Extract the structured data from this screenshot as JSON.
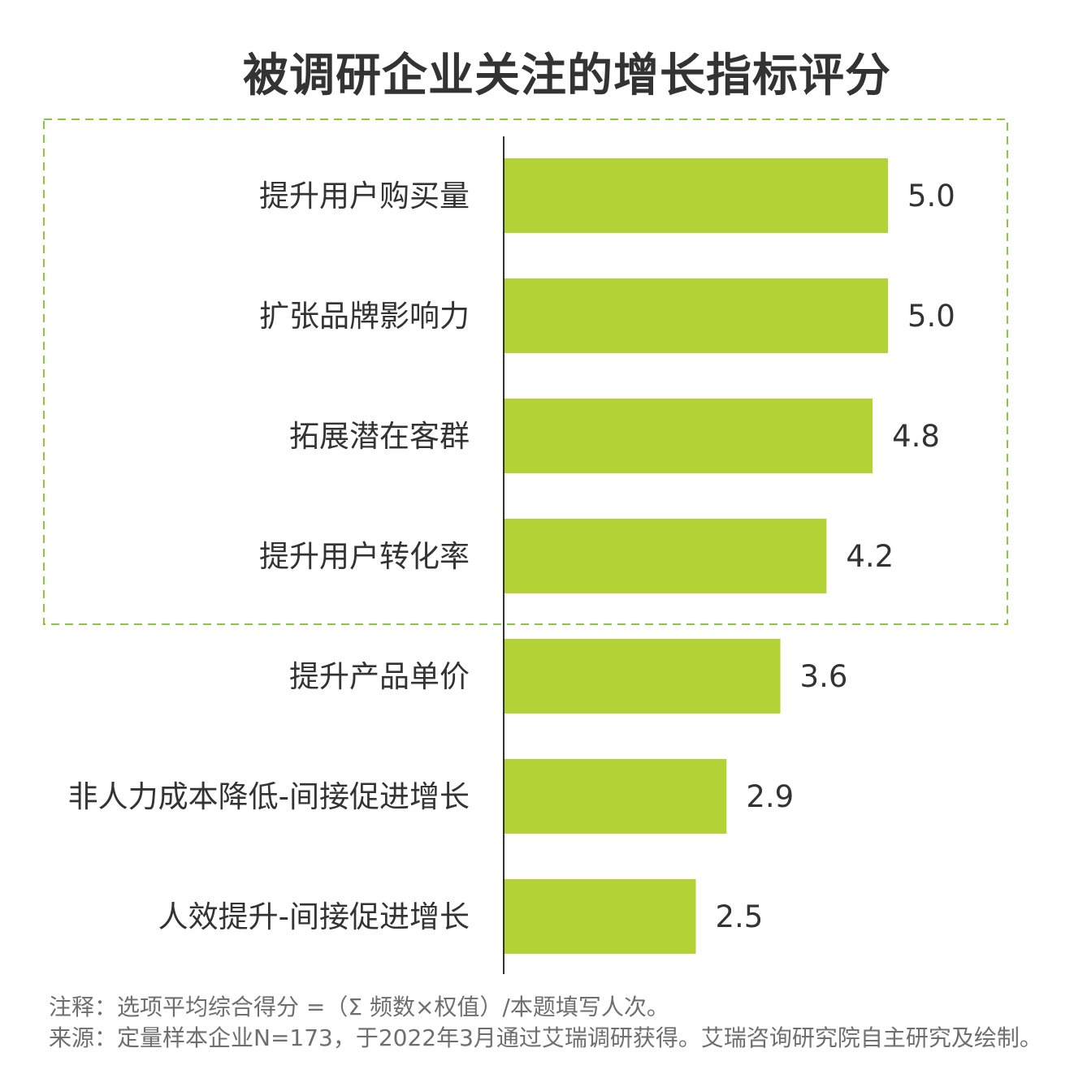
{
  "chart_data": {
    "type": "bar",
    "orientation": "horizontal",
    "title": "被调研企业关注的增长指标评分",
    "categories": [
      "提升用户购买量",
      "扩张品牌影响力",
      "拓展潜在客群",
      "提升用户转化率",
      "提升产品单价",
      "非人力成本降低-间接促进增长",
      "人效提升-间接促进增长"
    ],
    "values": [
      5.0,
      5.0,
      4.8,
      4.2,
      3.6,
      2.9,
      2.5
    ],
    "value_labels": [
      "5.0",
      "5.0",
      "4.8",
      "4.2",
      "3.6",
      "2.9",
      "2.5"
    ],
    "highlighted_group": [
      "提升用户购买量",
      "扩张品牌影响力",
      "拓展潜在客群",
      "提升用户转化率"
    ],
    "xlim": [
      0,
      5.0
    ],
    "grid": false,
    "bar_color": "#b2d235",
    "highlight_box_color": "#8cc63f"
  },
  "notes": {
    "line1": "注释：选项平均综合得分 =（Σ 频数×权值）/本题填写人次。",
    "line2": "来源：定量样本企业N=173，于2022年3月通过艾瑞调研获得。艾瑞咨询研究院自主研究及绘制。"
  }
}
